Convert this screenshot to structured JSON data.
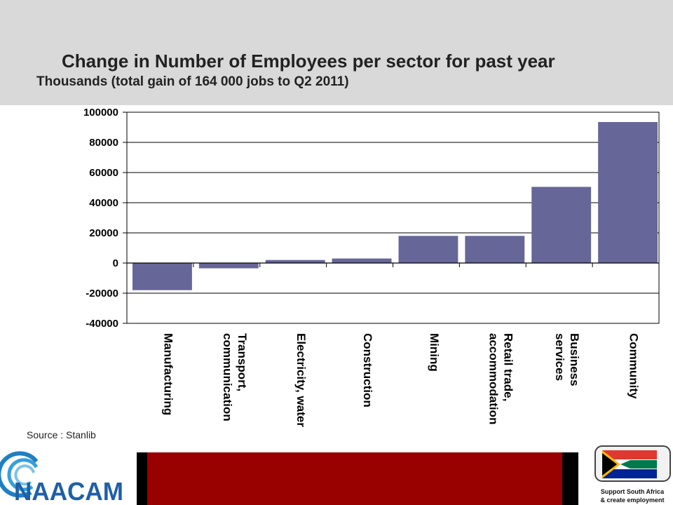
{
  "header": {
    "title": "Change in Number of Employees per sector for past year",
    "subtitle": "Thousands (total gain of 164 000 jobs to Q2 2011)"
  },
  "source": "Source : Stanlib",
  "logos": {
    "left_text": "NAACAM",
    "right_line1": "Support South Africa",
    "right_line2": "& create employment"
  },
  "colors": {
    "bar": "#676699",
    "header_bg": "#d9d9d9",
    "band_red": "#990000"
  },
  "chart_data": {
    "type": "bar",
    "title": "Change in Number of Employees per sector for past year",
    "subtitle": "Thousands (total gain of 164 000 jobs to Q2 2011)",
    "categories": [
      [
        "Manufacturing"
      ],
      [
        "Transport,",
        "communication"
      ],
      [
        "Electricity, water"
      ],
      [
        "Construction"
      ],
      [
        "Mining"
      ],
      [
        "Retail trade,",
        "accommodation"
      ],
      [
        "Business",
        "services"
      ],
      [
        "Community"
      ]
    ],
    "values": [
      -18000,
      -3500,
      2000,
      3000,
      18000,
      18000,
      50500,
      93500
    ],
    "ylim": [
      -40000,
      100000
    ],
    "yticks": [
      -40000,
      -20000,
      0,
      20000,
      40000,
      60000,
      80000,
      100000
    ],
    "ytick_labels": [
      "-40000",
      "-20000",
      "0",
      "20000",
      "40000",
      "60000",
      "80000",
      "100000"
    ],
    "grid": true,
    "legend": false
  }
}
